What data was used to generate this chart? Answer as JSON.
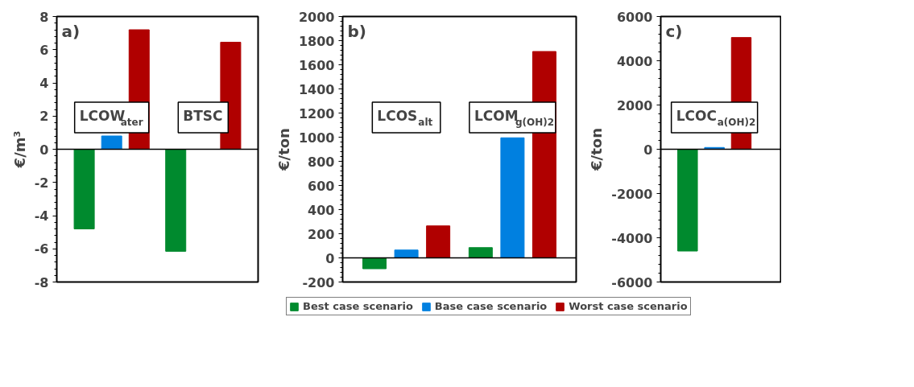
{
  "chart_data": [
    {
      "type": "bar",
      "title": "a)",
      "ylabel": "€/m³",
      "categories": [
        null,
        null
      ],
      "tick_labels": "y",
      "ylim": [
        -8,
        8
      ],
      "yticks": [
        -8,
        -6,
        -4,
        -2,
        0,
        2,
        4,
        6,
        8
      ],
      "annotations": [
        "LCOW$_{ater}$",
        "BTSC"
      ],
      "series": [
        {
          "color": "#008a2e",
          "values": [
            -4.8,
            -6.15
          ]
        },
        {
          "color": "#0080e0",
          "values": [
            0.8,
            0
          ]
        },
        {
          "color": "#b00000",
          "values": [
            7.2,
            6.45
          ]
        }
      ]
    },
    {
      "type": "bar",
      "title": "b)",
      "ylabel": "€/ton",
      "categories": [
        null,
        null
      ],
      "tick_labels": "y",
      "ylim": [
        -200,
        2000
      ],
      "yticks": [
        -200,
        0,
        200,
        400,
        600,
        800,
        1000,
        1200,
        1400,
        1600,
        1800,
        2000
      ],
      "legend": "bottom",
      "annotations": [
        "LCOS$_{alt}$",
        "LCOM$_{g(OH)2}$"
      ],
      "series": [
        {
          "name": "Best case scenario",
          "color": "#008a2e",
          "values": [
            -90,
            85
          ]
        },
        {
          "name": "Base case scenario",
          "color": "#0080e0",
          "values": [
            65,
            995
          ]
        },
        {
          "name": "Worst case scenario",
          "color": "#b00000",
          "values": [
            265,
            1710
          ]
        }
      ]
    },
    {
      "type": "bar",
      "title": "c)",
      "ylabel": "€/ton",
      "categories": [
        null
      ],
      "tick_labels": "y",
      "ylim": [
        -6000,
        6000
      ],
      "yticks": [
        -6000,
        -4000,
        -2000,
        0,
        2000,
        4000,
        6000
      ],
      "annotations": [
        "LCOC$_{a(OH)2}$"
      ],
      "series": [
        {
          "color": "#008a2e",
          "values": [
            -4600
          ]
        },
        {
          "color": "#0080e0",
          "values": [
            80
          ]
        },
        {
          "color": "#b00000",
          "values": [
            5050
          ]
        }
      ]
    }
  ]
}
